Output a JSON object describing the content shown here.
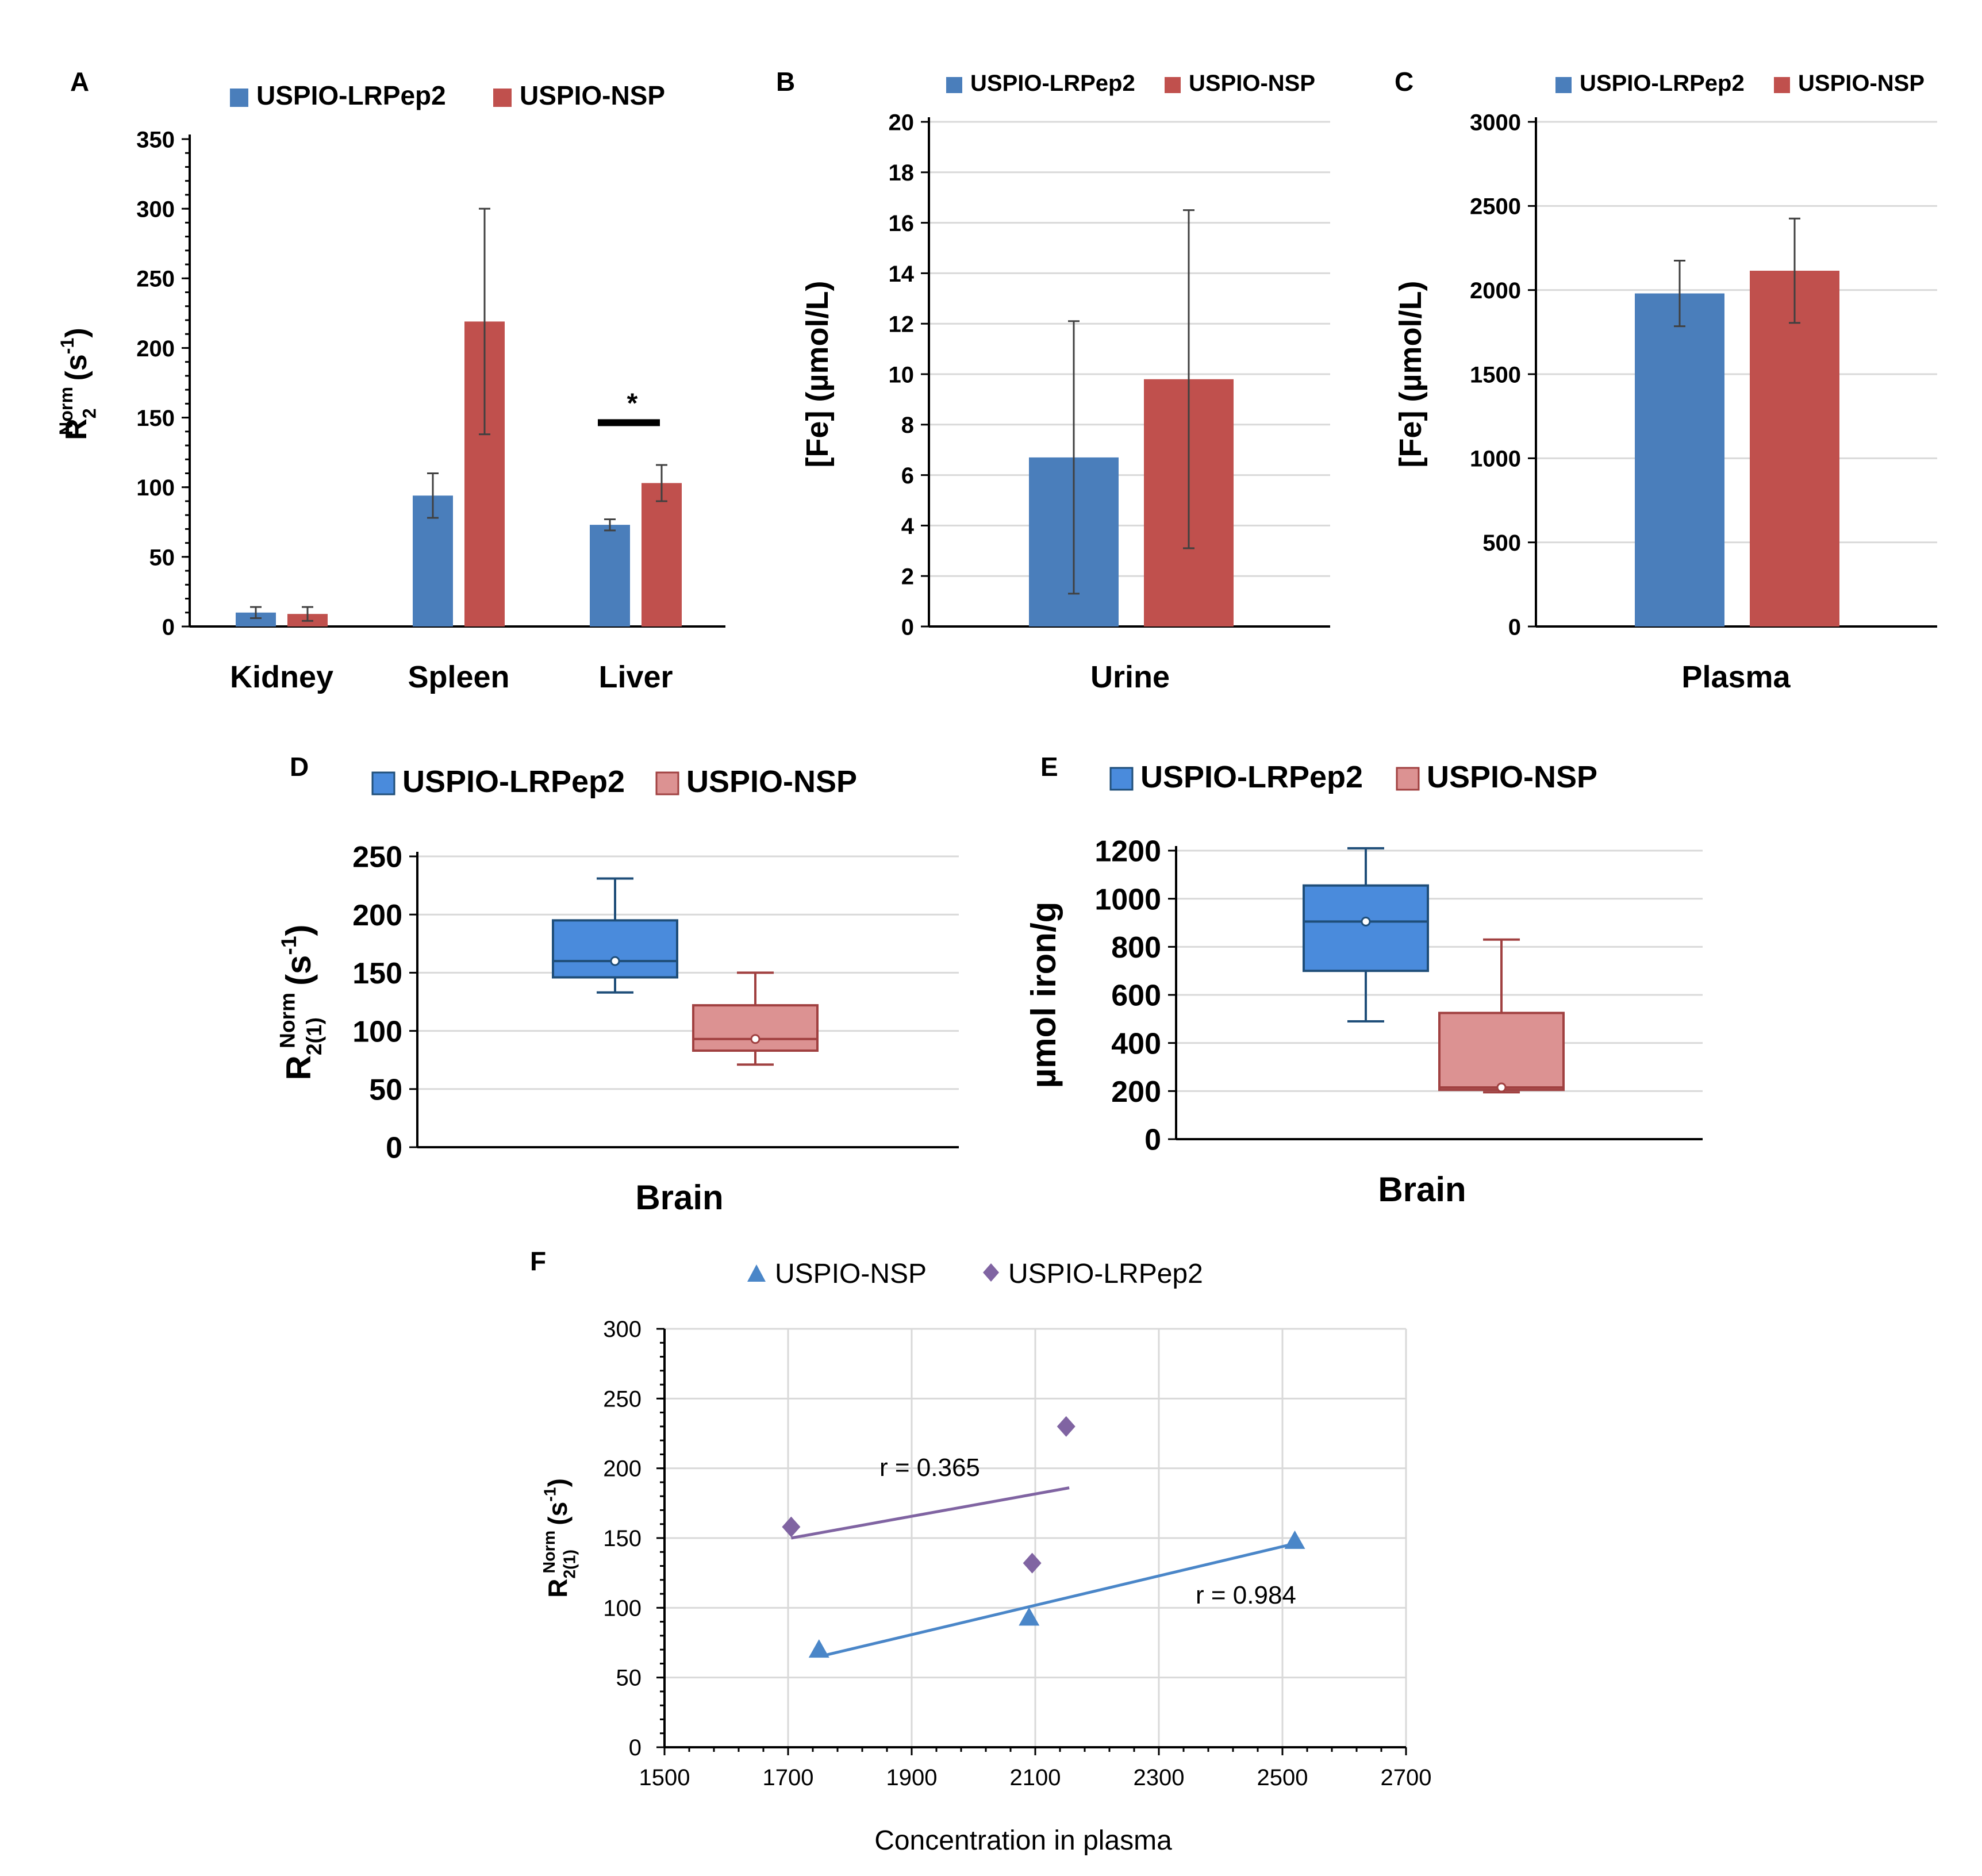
{
  "colors": {
    "blue": "#4a7ebb",
    "red": "#c0504d",
    "box_blue": "#4a8bdc",
    "box_blue_edge": "#1f4e79",
    "box_red": "#dc9292",
    "box_red_edge": "#a04040",
    "purple": "#8064a2",
    "line_blue": "#4a86c8"
  },
  "chart_data": [
    {
      "panel": "A",
      "type": "bar",
      "categories": [
        "Kidney",
        "Spleen",
        "Liver"
      ],
      "series": [
        {
          "name": "USPIO-LRPep2",
          "values": [
            10,
            94,
            73
          ],
          "errors": [
            4,
            16,
            4
          ]
        },
        {
          "name": "USPIO-NSP",
          "values": [
            9,
            219,
            103
          ],
          "errors": [
            5,
            81,
            13
          ]
        }
      ],
      "ylim": [
        0,
        350
      ],
      "yticks": [
        "0",
        "50",
        "100",
        "150",
        "200",
        "250",
        "300",
        "350"
      ],
      "ylabel_main": "R",
      "ylabel_sub": "2",
      "ylabel_sup": "Norm",
      "ylabel_unit": "(s",
      "ylabel_unit_sup": "-1",
      "ylabel_close": ")",
      "significance": {
        "label": "*",
        "category": "Liver",
        "y": 148
      }
    },
    {
      "panel": "B",
      "type": "bar",
      "categories": [
        "Urine"
      ],
      "series": [
        {
          "name": "USPIO-LRPep2",
          "values": [
            6.7
          ],
          "errors": [
            5.4
          ]
        },
        {
          "name": "USPIO-NSP",
          "values": [
            9.8
          ],
          "errors": [
            6.7
          ]
        }
      ],
      "ylim": [
        0,
        20
      ],
      "yticks": [
        "0",
        "2",
        "4",
        "6",
        "8",
        "10",
        "12",
        "14",
        "16",
        "18",
        "20"
      ],
      "ylabel": "[Fe] (µmol/L)"
    },
    {
      "panel": "C",
      "type": "bar",
      "categories": [
        "Plasma"
      ],
      "series": [
        {
          "name": "USPIO-LRPep2",
          "values": [
            1980
          ],
          "errors": [
            195
          ]
        },
        {
          "name": "USPIO-NSP",
          "values": [
            2115
          ],
          "errors": [
            310
          ]
        }
      ],
      "ylim": [
        0,
        3000
      ],
      "yticks": [
        "0",
        "500",
        "1000",
        "1500",
        "2000",
        "2500",
        "3000"
      ],
      "ylabel": "[Fe] (µmol/L)"
    },
    {
      "panel": "D",
      "type": "box",
      "categories": [
        "Brain"
      ],
      "xlabel": "Brain",
      "series": [
        {
          "name": "USPIO-LRPep2",
          "min": 133,
          "q1": 146,
          "median": 160,
          "mean": 160,
          "q3": 195,
          "max": 231
        },
        {
          "name": "USPIO-NSP",
          "min": 71,
          "q1": 83,
          "median": 93,
          "mean": 93,
          "q3": 122,
          "max": 150
        }
      ],
      "ylim": [
        0,
        250
      ],
      "yticks": [
        "0",
        "50",
        "100",
        "150",
        "200",
        "250"
      ],
      "ylabel_main": "R",
      "ylabel_sub": "2(1)",
      "ylabel_sup": "Norm",
      "ylabel_unit": "(s",
      "ylabel_unit_sup": "-1",
      "ylabel_close": ")"
    },
    {
      "panel": "E",
      "type": "box",
      "categories": [
        "Brain"
      ],
      "xlabel": "Brain",
      "series": [
        {
          "name": "USPIO-LRPep2",
          "min": 490,
          "q1": 700,
          "median": 905,
          "mean": 905,
          "q3": 1055,
          "max": 1210
        },
        {
          "name": "USPIO-NSP",
          "min": 195,
          "q1": 205,
          "median": 215,
          "mean": 215,
          "q3": 525,
          "max": 830
        }
      ],
      "ylim": [
        0,
        1200
      ],
      "yticks": [
        "0",
        "200",
        "400",
        "600",
        "800",
        "1000",
        "1200"
      ],
      "ylabel": "µmol iron/g"
    },
    {
      "panel": "F",
      "type": "scatter",
      "series": [
        {
          "name": "USPIO-NSP",
          "marker": "triangle",
          "points": [
            [
              1750,
              70
            ],
            [
              2090,
              93
            ],
            [
              2520,
              148
            ]
          ],
          "fit": [
            [
              1760,
              66
            ],
            [
              2520,
              146
            ]
          ],
          "r_label": "r = 0.984"
        },
        {
          "name": "USPIO-LRPep2",
          "marker": "diamond",
          "points": [
            [
              1705,
              158
            ],
            [
              2095,
              132
            ],
            [
              2150,
              230
            ]
          ],
          "fit": [
            [
              1705,
              150
            ],
            [
              2155,
              186
            ]
          ],
          "r_label": "r = 0.365"
        }
      ],
      "xlim": [
        1500,
        2700
      ],
      "ylim": [
        0,
        300
      ],
      "xticks": [
        "1500",
        "1700",
        "1900",
        "2100",
        "2300",
        "2500",
        "2700"
      ],
      "yticks": [
        "0",
        "50",
        "100",
        "150",
        "200",
        "250",
        "300"
      ],
      "xlabel": "Concentration in plasma",
      "ylabel_main": "R",
      "ylabel_sub": "2(1)",
      "ylabel_sup": "Norm",
      "ylabel_unit": "(s",
      "ylabel_unit_sup": "-1",
      "ylabel_close": ")"
    }
  ]
}
